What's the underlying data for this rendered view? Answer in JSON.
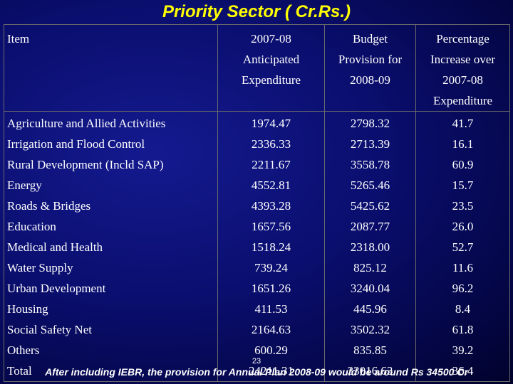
{
  "title": "Priority Sector ( Cr.Rs.)",
  "headers": {
    "item": "Item",
    "anticipated": [
      "2007-08",
      "Anticipated",
      "Expenditure"
    ],
    "budget": [
      "Budget",
      "Provision for",
      "2008-09"
    ],
    "increase": [
      "Percentage",
      "Increase over",
      "2007-08",
      "Expenditure"
    ]
  },
  "rows": [
    {
      "item": "Agriculture and Allied Activities",
      "anticipated": "1974.47",
      "budget": "2798.32",
      "increase": "41.7"
    },
    {
      "item": "Irrigation and Flood Control",
      "anticipated": "2336.33",
      "budget": "2713.39",
      "increase": "16.1"
    },
    {
      "item": "Rural Development (Incld SAP)",
      "anticipated": "2211.67",
      "budget": "3558.78",
      "increase": "60.9"
    },
    {
      "item": "Energy",
      "anticipated": "4552.81",
      "budget": "5265.46",
      "increase": "15.7"
    },
    {
      "item": "Roads & Bridges",
      "anticipated": "4393.28",
      "budget": "5425.62",
      "increase": "23.5"
    },
    {
      "item": "Education",
      "anticipated": "1657.56",
      "budget": "2087.77",
      "increase": "26.0"
    },
    {
      "item": "Medical and Health",
      "anticipated": "1518.24",
      "budget": "2318.00",
      "increase": "52.7"
    },
    {
      "item": "Water Supply",
      "anticipated": "739.24",
      "budget": "825.12",
      "increase": "11.6"
    },
    {
      "item": "Urban Development",
      "anticipated": "1651.26",
      "budget": "3240.04",
      "increase": "96.2"
    },
    {
      "item": "Housing",
      "anticipated": "411.53",
      "budget": "445.96",
      "increase": "8.4"
    },
    {
      "item": "Social Safety Net",
      "anticipated": "2164.63",
      "budget": "3502.32",
      "increase": "61.8"
    },
    {
      "item": "Others",
      "anticipated": "600.29",
      "budget": "835.85",
      "increase": "39.2"
    },
    {
      "item": "Total",
      "anticipated": "24211.31",
      "budget": "33016.63",
      "increase": "36.4"
    }
  ],
  "page_number": "23",
  "footnote": "After including IEBR, the provision for Annual Plan 2008-09 would be around Rs 34500 Cr",
  "colors": {
    "title": "#ffff00",
    "background": "#0a0e6e",
    "text": "#ffffff",
    "grid": "#6a6a6a"
  }
}
